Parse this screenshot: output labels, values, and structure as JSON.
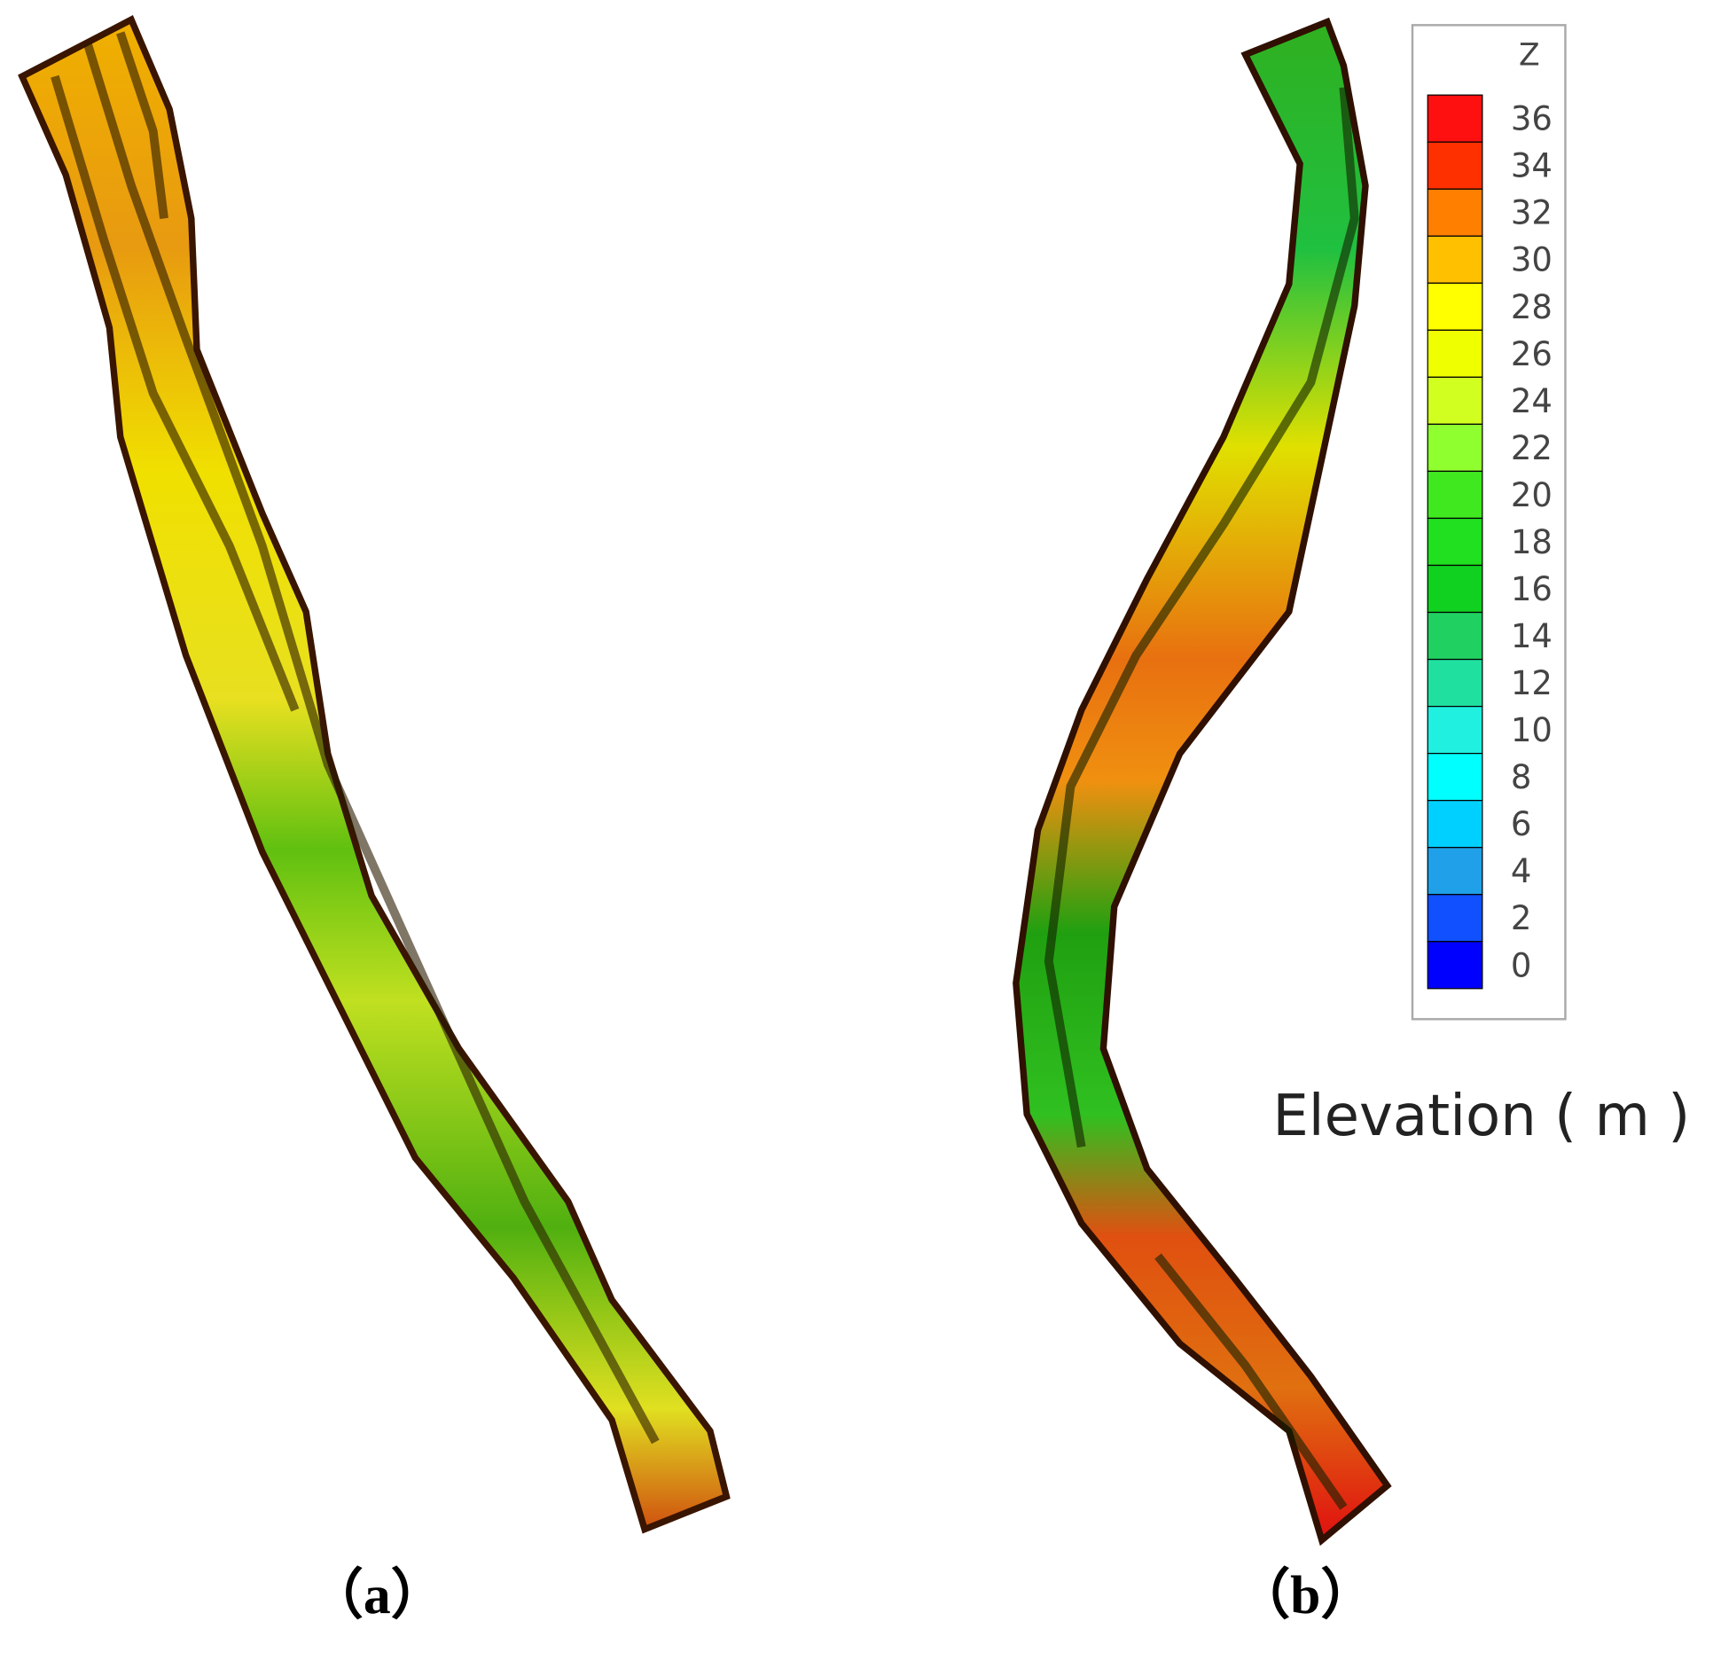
{
  "panels": [
    {
      "label": "（a）"
    },
    {
      "label": "（b）"
    }
  ],
  "legend": {
    "title": "Z",
    "ticks": [
      36,
      34,
      32,
      30,
      28,
      26,
      24,
      22,
      20,
      18,
      16,
      14,
      12,
      10,
      8,
      6,
      4,
      2,
      0
    ],
    "colors": [
      "#ff1010",
      "#ff3000",
      "#ff7f00",
      "#ffc000",
      "#ffff00",
      "#f0ff00",
      "#d0ff20",
      "#90ff30",
      "#40e820",
      "#20e020",
      "#10d020",
      "#20d060",
      "#20e0a0",
      "#20f0e0",
      "#00ffff",
      "#00d0ff",
      "#20a0e8",
      "#1050ff",
      "#0000ff"
    ],
    "caption": "Elevation ( m )"
  }
}
